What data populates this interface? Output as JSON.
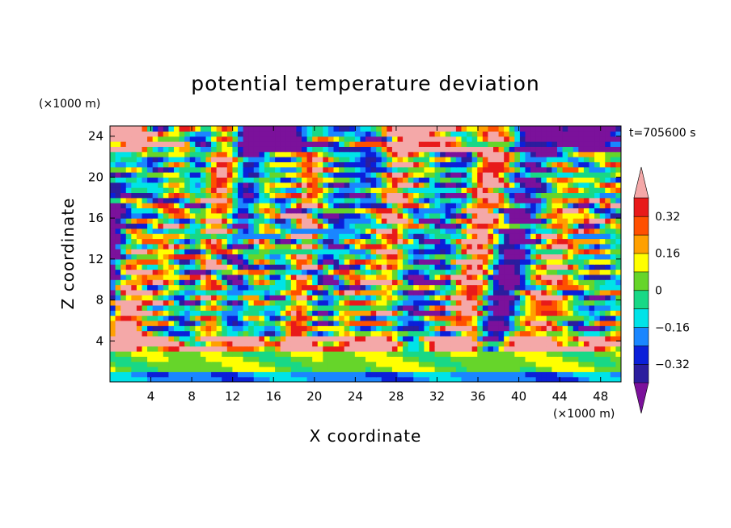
{
  "chart_data": {
    "type": "heatmap",
    "title": "potential temperature deviation",
    "xlabel": "X coordinate",
    "ylabel": "Z coordinate",
    "x_unit": "(×1000 m)",
    "y_unit": "(×1000 m)",
    "time_label": "t=705600 s",
    "xlim": [
      0,
      50
    ],
    "ylim": [
      0,
      25
    ],
    "xticks": [
      4,
      8,
      12,
      16,
      20,
      24,
      28,
      32,
      36,
      40,
      44,
      48
    ],
    "xtick_labels": [
      "4",
      "8",
      "12",
      "16",
      "20",
      "24",
      "28",
      "32",
      "36",
      "40",
      "44",
      "48"
    ],
    "yticks": [
      4,
      8,
      12,
      16,
      20,
      24
    ],
    "ytick_labels": [
      "4",
      "8",
      "12",
      "16",
      "20",
      "24"
    ],
    "colorbar": {
      "levels": [
        -0.4,
        -0.32,
        -0.24,
        -0.16,
        -0.08,
        0,
        0.08,
        0.16,
        0.24,
        0.32,
        0.4
      ],
      "colors": [
        "#7b119b",
        "#2b1d9e",
        "#0b1fd9",
        "#1a86ff",
        "#00e3e8",
        "#18d886",
        "#66d52a",
        "#ffff00",
        "#ffa000",
        "#ff5000",
        "#e81a1a",
        "#f4a8a8"
      ],
      "labels": [
        "0.32",
        "0.16",
        "0",
        "−0.16",
        "−0.32"
      ],
      "label_values": [
        0.32,
        0.16,
        0,
        -0.16,
        -0.32
      ]
    }
  }
}
